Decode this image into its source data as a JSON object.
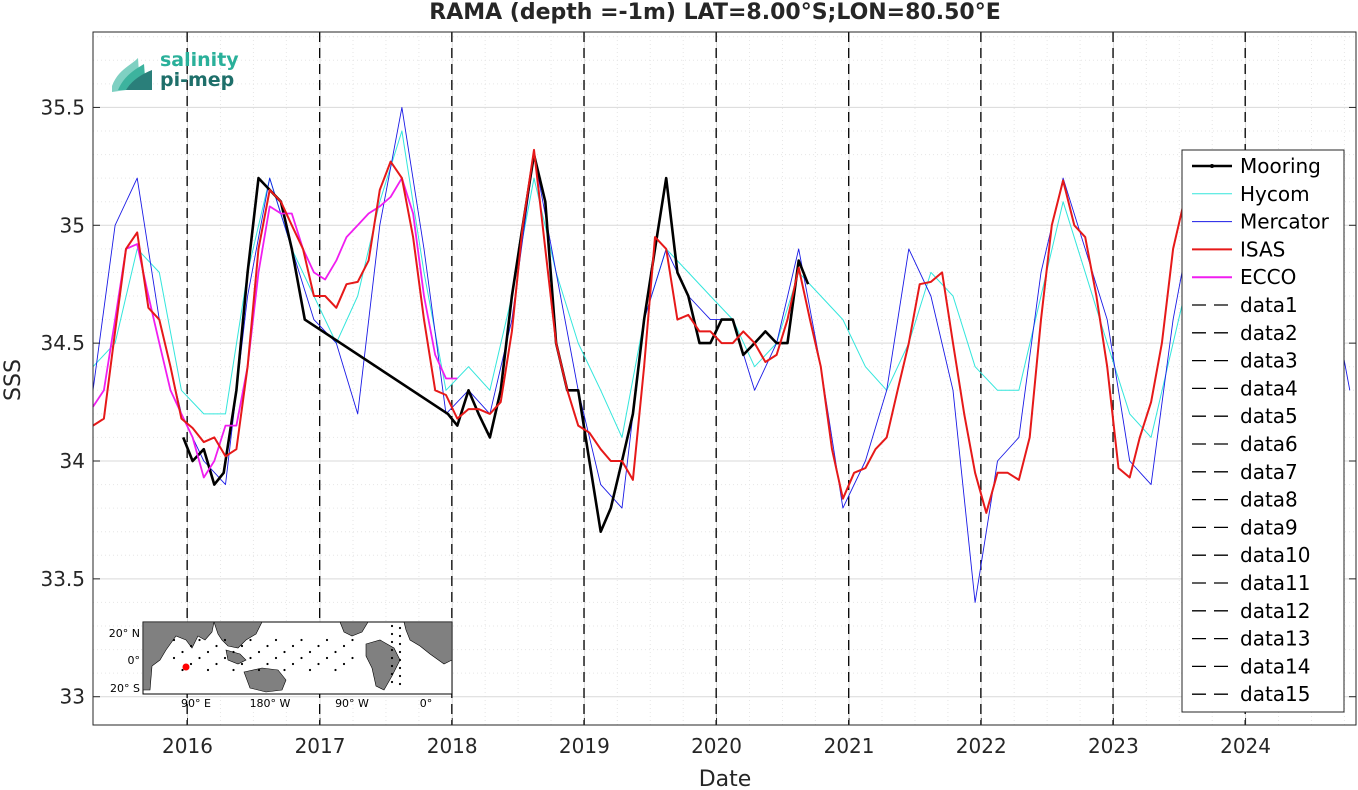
{
  "chart_data": {
    "type": "line",
    "title": "RAMA (depth =-1m) LAT=8.00°S;LON=80.50°E",
    "xlabel": "Date",
    "ylabel": "SSS",
    "xlim": [
      "2015-04-15",
      "2024-11-01"
    ],
    "ylim": [
      32.88,
      35.82
    ],
    "xticks": [
      "2016-01-01",
      "2017-01-01",
      "2018-01-01",
      "2019-01-01",
      "2020-01-01",
      "2021-01-01",
      "2022-01-01",
      "2023-01-01",
      "2024-01-01"
    ],
    "xtick_labels": [
      "2016",
      "2017",
      "2018",
      "2019",
      "2020",
      "2021",
      "2022",
      "2023",
      "2024"
    ],
    "yticks": [
      33,
      33.5,
      34,
      34.5,
      35,
      35.5
    ],
    "ytick_labels": [
      "33",
      "33.5",
      "34",
      "34.5",
      "35",
      "35.5"
    ],
    "grid": true,
    "legend_position": "right",
    "colors": {
      "Mooring": "#000000",
      "Hycom": "#33e6dc",
      "Mercator": "#1a1ae6",
      "ISAS": "#e61919",
      "ECCO": "#f01ef0"
    },
    "series": [
      {
        "name": "Mooring",
        "color": "#000000",
        "x": [
          "2015-12-20",
          "2016-01-15",
          "2016-02-15",
          "2016-03-15",
          "2016-04-10",
          "2016-05-15",
          "2016-06-15",
          "2016-07-15",
          "2016-08-15",
          "2016-09-15",
          "2016-10-15",
          "2016-11-20",
          "2017-12-20",
          "2018-01-15",
          "2018-02-15",
          "2018-03-15",
          "2018-04-15",
          "2018-05-15",
          "2018-06-15",
          "2018-07-15",
          "2018-08-15",
          "2018-09-15",
          "2018-10-15",
          "2018-11-15",
          "2018-12-15",
          "2019-01-15",
          "2019-02-15",
          "2019-03-15",
          "2019-04-15",
          "2019-05-15",
          "2019-06-15",
          "2019-07-15",
          "2019-08-15",
          "2019-09-15",
          "2019-10-15",
          "2019-11-15",
          "2019-12-15",
          "2020-01-15",
          "2020-02-15",
          "2020-03-15",
          "2020-04-15",
          "2020-05-15",
          "2020-06-15",
          "2020-07-15",
          "2020-08-15",
          "2020-09-10"
        ],
        "y": [
          34.1,
          34.0,
          34.05,
          33.9,
          33.95,
          34.3,
          34.8,
          35.2,
          35.15,
          35.1,
          34.9,
          34.6,
          34.2,
          34.15,
          34.3,
          34.2,
          34.1,
          34.3,
          34.7,
          35.0,
          35.3,
          35.1,
          34.5,
          34.3,
          34.3,
          34.0,
          33.7,
          33.8,
          34.0,
          34.2,
          34.6,
          34.9,
          35.2,
          34.8,
          34.7,
          34.5,
          34.5,
          34.6,
          34.6,
          34.45,
          34.5,
          34.55,
          34.5,
          34.5,
          34.85,
          34.75
        ]
      },
      {
        "name": "Hycom",
        "color": "#33e6dc",
        "x": [
          "2015-04-15",
          "2015-06-15",
          "2015-08-15",
          "2015-10-15",
          "2015-12-15",
          "2016-02-15",
          "2016-04-15",
          "2016-06-15",
          "2016-08-15",
          "2016-10-15",
          "2016-12-15",
          "2017-02-15",
          "2017-04-15",
          "2017-06-15",
          "2017-08-15",
          "2017-10-15",
          "2017-12-15",
          "2018-02-15",
          "2018-04-15",
          "2018-06-15",
          "2018-08-15",
          "2018-10-15",
          "2018-12-15",
          "2019-02-15",
          "2019-04-15",
          "2019-06-15",
          "2019-08-15",
          "2019-10-15",
          "2019-12-15",
          "2020-02-15",
          "2020-04-15",
          "2020-06-15",
          "2020-08-15",
          "2020-10-15",
          "2020-12-15",
          "2021-02-15",
          "2021-04-15",
          "2021-06-15",
          "2021-08-15",
          "2021-10-15",
          "2021-12-15",
          "2022-02-15",
          "2022-04-15",
          "2022-06-15",
          "2022-08-15",
          "2022-10-15",
          "2022-12-15",
          "2023-02-15",
          "2023-04-15",
          "2023-06-15",
          "2023-08-15"
        ],
        "y": [
          34.4,
          34.5,
          34.9,
          34.8,
          34.3,
          34.2,
          34.2,
          34.8,
          35.2,
          34.9,
          34.7,
          34.5,
          34.7,
          35.1,
          35.4,
          34.8,
          34.3,
          34.4,
          34.3,
          34.7,
          35.2,
          34.8,
          34.5,
          34.3,
          34.1,
          34.6,
          34.9,
          34.8,
          34.7,
          34.6,
          34.4,
          34.5,
          34.8,
          34.7,
          34.6,
          34.4,
          34.3,
          34.5,
          34.8,
          34.7,
          34.4,
          34.3,
          34.3,
          34.7,
          35.1,
          34.8,
          34.5,
          34.2,
          34.1,
          34.5,
          34.9
        ]
      },
      {
        "name": "Mercator",
        "color": "#1a1ae6",
        "x": [
          "2015-04-15",
          "2015-06-15",
          "2015-08-15",
          "2015-10-15",
          "2015-12-15",
          "2016-02-15",
          "2016-04-15",
          "2016-06-15",
          "2016-08-15",
          "2016-10-15",
          "2016-12-15",
          "2017-02-15",
          "2017-04-15",
          "2017-06-15",
          "2017-08-15",
          "2017-10-15",
          "2017-12-15",
          "2018-02-15",
          "2018-04-15",
          "2018-06-15",
          "2018-08-15",
          "2018-10-15",
          "2018-12-15",
          "2019-02-15",
          "2019-04-15",
          "2019-06-15",
          "2019-08-15",
          "2019-10-15",
          "2019-12-15",
          "2020-02-15",
          "2020-04-15",
          "2020-06-15",
          "2020-08-15",
          "2020-10-15",
          "2020-12-15",
          "2021-02-15",
          "2021-04-15",
          "2021-06-15",
          "2021-08-15",
          "2021-10-15",
          "2021-12-15",
          "2022-02-15",
          "2022-04-15",
          "2022-06-15",
          "2022-08-15",
          "2022-10-15",
          "2022-12-15",
          "2023-02-15",
          "2023-04-15",
          "2023-06-15",
          "2023-08-15",
          "2023-10-15",
          "2023-12-15",
          "2024-02-15",
          "2024-04-15",
          "2024-06-15",
          "2024-08-15",
          "2024-10-15"
        ],
        "y": [
          34.3,
          35.0,
          35.2,
          34.6,
          34.2,
          34.0,
          33.9,
          34.7,
          35.2,
          34.9,
          34.6,
          34.5,
          34.2,
          35.0,
          35.5,
          34.9,
          34.2,
          34.3,
          34.2,
          34.6,
          35.3,
          34.8,
          34.3,
          33.9,
          33.8,
          34.6,
          34.9,
          34.7,
          34.6,
          34.6,
          34.3,
          34.5,
          34.9,
          34.4,
          33.8,
          34.0,
          34.3,
          34.9,
          34.7,
          34.3,
          33.4,
          34.0,
          34.1,
          34.8,
          35.2,
          34.9,
          34.6,
          34.0,
          33.9,
          34.6,
          35.1,
          35.0,
          34.6,
          34.3,
          34.9,
          35.1,
          34.8,
          34.3
        ]
      },
      {
        "name": "ISAS",
        "color": "#e61919",
        "x": [
          "2015-04-15",
          "2015-05-15",
          "2015-06-15",
          "2015-07-15",
          "2015-08-15",
          "2015-09-15",
          "2015-10-15",
          "2015-11-15",
          "2015-12-15",
          "2016-01-15",
          "2016-02-15",
          "2016-03-15",
          "2016-04-15",
          "2016-05-15",
          "2016-06-15",
          "2016-07-15",
          "2016-08-15",
          "2016-09-15",
          "2016-10-15",
          "2016-11-15",
          "2016-12-15",
          "2017-01-15",
          "2017-02-15",
          "2017-03-15",
          "2017-04-15",
          "2017-05-15",
          "2017-06-15",
          "2017-07-15",
          "2017-08-15",
          "2017-09-15",
          "2017-10-15",
          "2017-11-15",
          "2017-12-15",
          "2018-01-15",
          "2018-02-15",
          "2018-03-15",
          "2018-04-15",
          "2018-05-15",
          "2018-06-15",
          "2018-07-15",
          "2018-08-15",
          "2018-09-15",
          "2018-10-15",
          "2018-11-15",
          "2018-12-15",
          "2019-01-15",
          "2019-02-15",
          "2019-03-15",
          "2019-04-15",
          "2019-05-15",
          "2019-06-15",
          "2019-07-15",
          "2019-08-15",
          "2019-09-15",
          "2019-10-15",
          "2019-11-15",
          "2019-12-15",
          "2020-01-15",
          "2020-02-15",
          "2020-03-15",
          "2020-04-15",
          "2020-05-15",
          "2020-06-15",
          "2020-07-15",
          "2020-08-15",
          "2020-09-15",
          "2020-10-15",
          "2020-11-15",
          "2020-12-15",
          "2021-01-15",
          "2021-02-15",
          "2021-03-15",
          "2021-04-15",
          "2021-05-15",
          "2021-06-15",
          "2021-07-15",
          "2021-08-15",
          "2021-09-15",
          "2021-10-15",
          "2021-11-15",
          "2021-12-15",
          "2022-01-15",
          "2022-02-15",
          "2022-03-15",
          "2022-04-15",
          "2022-05-15",
          "2022-06-15",
          "2022-07-15",
          "2022-08-15",
          "2022-09-15",
          "2022-10-15",
          "2022-11-15",
          "2022-12-15",
          "2023-01-15",
          "2023-02-15",
          "2023-03-15",
          "2023-04-15",
          "2023-05-15",
          "2023-06-15",
          "2023-07-15"
        ],
        "y": [
          34.15,
          34.18,
          34.55,
          34.9,
          34.97,
          34.65,
          34.6,
          34.4,
          34.18,
          34.14,
          34.08,
          34.1,
          34.02,
          34.05,
          34.4,
          34.9,
          35.15,
          35.1,
          35.0,
          34.9,
          34.7,
          34.7,
          34.65,
          34.75,
          34.76,
          34.85,
          35.15,
          35.27,
          35.2,
          34.95,
          34.6,
          34.3,
          34.28,
          34.18,
          34.22,
          34.22,
          34.2,
          34.25,
          34.55,
          35.0,
          35.32,
          34.9,
          34.5,
          34.3,
          34.15,
          34.12,
          34.05,
          34.0,
          34.0,
          33.92,
          34.4,
          34.95,
          34.9,
          34.6,
          34.62,
          34.55,
          34.55,
          34.5,
          34.5,
          34.55,
          34.5,
          34.42,
          34.45,
          34.6,
          34.82,
          34.6,
          34.4,
          34.05,
          33.84,
          33.95,
          33.97,
          34.05,
          34.1,
          34.3,
          34.5,
          34.75,
          34.76,
          34.8,
          34.5,
          34.2,
          33.95,
          33.78,
          33.95,
          33.95,
          33.92,
          34.1,
          34.6,
          35.0,
          35.19,
          35.0,
          34.95,
          34.7,
          34.4,
          33.97,
          33.93,
          34.1,
          34.25,
          34.5,
          34.9,
          35.1
        ]
      },
      {
        "name": "ECCO",
        "color": "#f01ef0",
        "x": [
          "2015-04-15",
          "2015-05-15",
          "2015-06-15",
          "2015-07-15",
          "2015-08-15",
          "2015-09-15",
          "2015-10-15",
          "2015-11-15",
          "2015-12-15",
          "2016-01-15",
          "2016-02-15",
          "2016-03-15",
          "2016-04-15",
          "2016-05-15",
          "2016-06-15",
          "2016-07-15",
          "2016-08-15",
          "2016-09-15",
          "2016-10-15",
          "2016-11-15",
          "2016-12-15",
          "2017-01-15",
          "2017-02-15",
          "2017-03-15",
          "2017-04-15",
          "2017-05-15",
          "2017-06-15",
          "2017-07-15",
          "2017-08-15",
          "2017-09-15",
          "2017-10-15",
          "2017-11-15",
          "2017-12-15",
          "2018-01-15"
        ],
        "y": [
          34.23,
          34.3,
          34.6,
          34.9,
          34.92,
          34.7,
          34.5,
          34.3,
          34.2,
          34.1,
          33.93,
          34.0,
          34.15,
          34.15,
          34.4,
          34.8,
          35.08,
          35.05,
          35.05,
          34.9,
          34.8,
          34.77,
          34.85,
          34.95,
          35.0,
          35.05,
          35.08,
          35.12,
          35.2,
          35.05,
          34.7,
          34.45,
          34.35,
          34.35
        ]
      }
    ],
    "vlines": [
      "2015-12-31",
      "2016-12-31",
      "2017-12-31",
      "2018-12-31",
      "2019-12-31",
      "2020-12-31",
      "2021-12-31",
      "2022-12-31",
      "2023-12-31"
    ],
    "legend": [
      "Mooring",
      "Hycom",
      "Mercator",
      "ISAS",
      "ECCO",
      "data1",
      "data2",
      "data3",
      "data4",
      "data5",
      "data6",
      "data7",
      "data8",
      "data9",
      "data10",
      "data11",
      "data12",
      "data13",
      "data14",
      "data15"
    ]
  },
  "logo": {
    "line1": "salinity",
    "line2": "pi-mep"
  },
  "inset_map": {
    "lat_labels": [
      "20° N",
      "0°",
      "20° S"
    ],
    "lon_labels": [
      "90° E",
      "180° W",
      "90° W",
      "0°"
    ],
    "land_color": "#808080",
    "marker_color": "#ff0000"
  }
}
